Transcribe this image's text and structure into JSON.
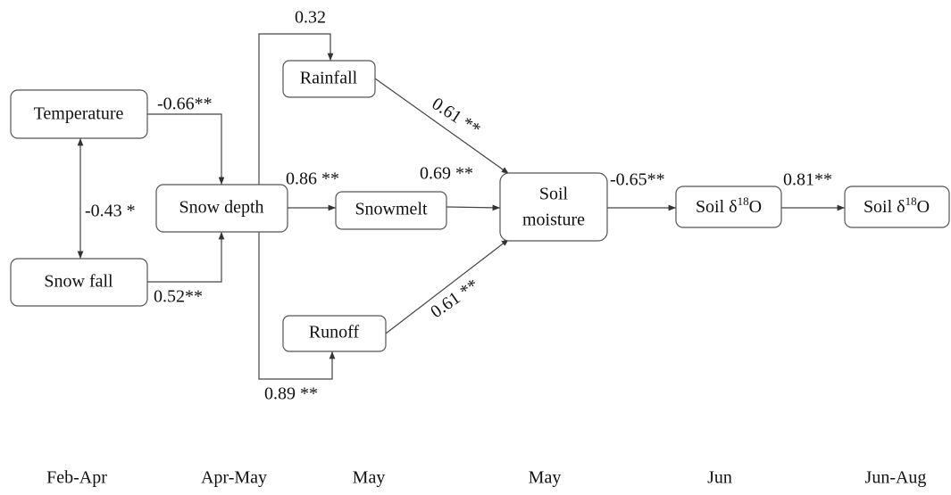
{
  "nodes": [
    {
      "label": "Temperature"
    },
    {
      "label": "Snow fall"
    },
    {
      "label": "Snow depth"
    },
    {
      "label": "Rainfall"
    },
    {
      "label": "Snowmelt"
    },
    {
      "label": "Runoff"
    },
    {
      "label_lines": [
        "Soil",
        "moisture"
      ]
    },
    {
      "prefix": "Soil δ",
      "sup": "18",
      "suffix": "O"
    },
    {
      "prefix": "Soil δ",
      "sup": "18",
      "suffix": "O"
    }
  ],
  "edges": [
    {
      "label": "-0.66**"
    },
    {
      "label": "-0.43 *"
    },
    {
      "label": "0.52**"
    },
    {
      "label": "0.32"
    },
    {
      "label": "0.86 **"
    },
    {
      "label": "0.61 **"
    },
    {
      "label": "0.69 **"
    },
    {
      "label": "0.61 **"
    },
    {
      "label": "0.89 **"
    },
    {
      "label": "-0.65**"
    },
    {
      "label": "0.81**"
    }
  ],
  "periods": [
    "Feb-Apr",
    "Apr-May",
    "May",
    "May",
    "Jun",
    "Jun-Aug"
  ]
}
